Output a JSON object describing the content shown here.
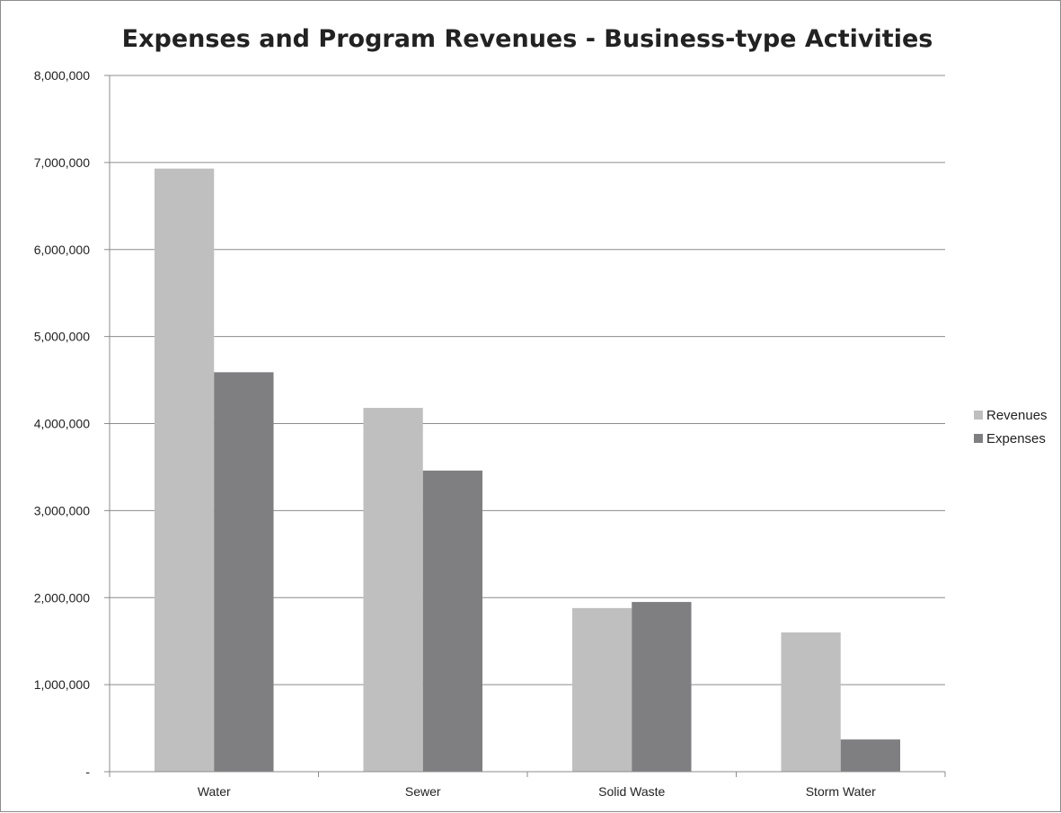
{
  "chart_data": {
    "type": "bar",
    "title": "Expenses and Program Revenues - Business-type Activities",
    "categories": [
      "Water",
      "Sewer",
      "Solid Waste",
      "Storm Water"
    ],
    "series": [
      {
        "name": "Revenues",
        "color": "#bfbfc0",
        "values": [
          6930000,
          4180000,
          1880000,
          1600000
        ]
      },
      {
        "name": "Expenses",
        "color": "#7f7f82",
        "values": [
          4590000,
          3460000,
          1950000,
          370000
        ]
      }
    ],
    "ylim": [
      0,
      8000000
    ],
    "yticks": [
      0,
      1000000,
      2000000,
      3000000,
      4000000,
      5000000,
      6000000,
      7000000,
      8000000
    ],
    "ytick_labels": [
      "-",
      "1,000,000",
      "2,000,000",
      "3,000,000",
      "4,000,000",
      "5,000,000",
      "6,000,000",
      "7,000,000",
      "8,000,000"
    ],
    "xlabel": "",
    "ylabel": "",
    "grid": true,
    "legend_position": "right"
  }
}
